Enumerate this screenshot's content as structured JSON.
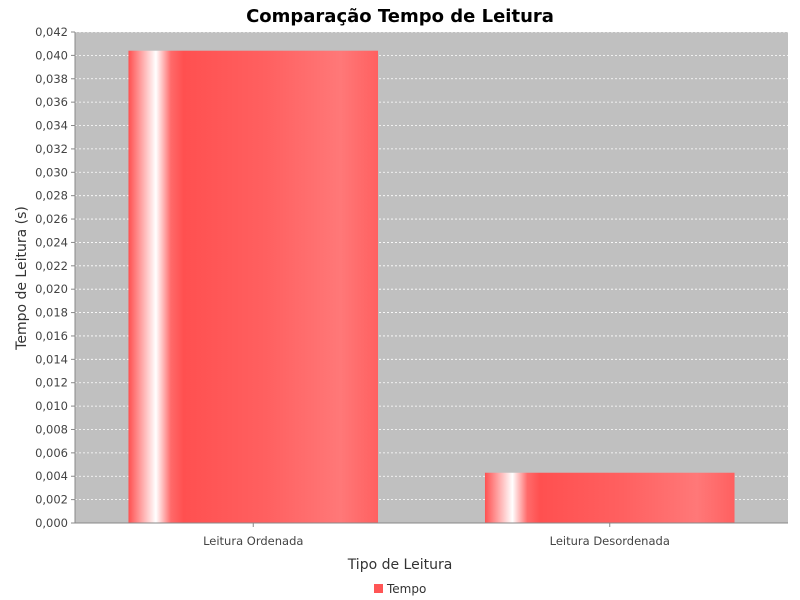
{
  "chart_data": {
    "type": "bar",
    "title": "Comparação Tempo de Leitura",
    "xlabel": "Tipo de Leitura",
    "ylabel": "Tempo de Leitura (s)",
    "categories": [
      "Leitura Ordenada",
      "Leitura Desordenada"
    ],
    "series": [
      {
        "name": "Tempo",
        "values": [
          0.0404,
          0.0043
        ]
      }
    ],
    "ylim": [
      0,
      0.042
    ],
    "yticks": [
      "0,000",
      "0,002",
      "0,004",
      "0,006",
      "0,008",
      "0,010",
      "0,012",
      "0,014",
      "0,016",
      "0,018",
      "0,020",
      "0,022",
      "0,024",
      "0,026",
      "0,028",
      "0,030",
      "0,032",
      "0,034",
      "0,036",
      "0,038",
      "0,040",
      "0,042"
    ],
    "grid": true,
    "legend_position": "bottom",
    "colors": {
      "bar": "#ff5555",
      "plot_bg": "#c0c0c0",
      "grid": "#ffffff"
    }
  }
}
